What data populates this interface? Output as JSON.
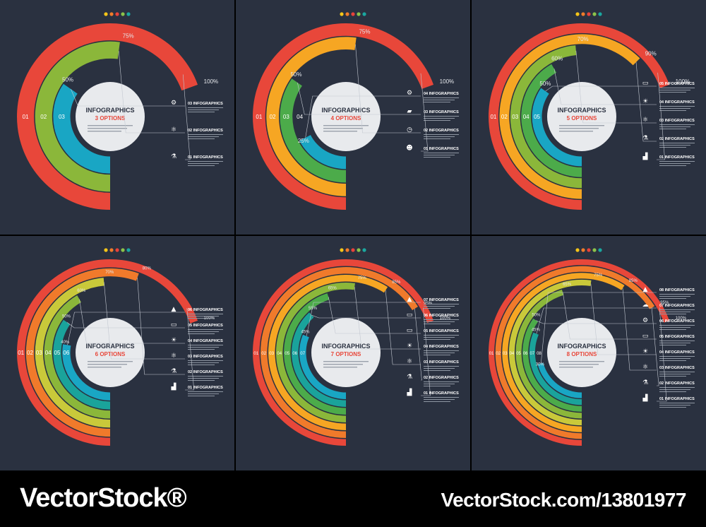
{
  "panels": [
    {
      "center_title": "INFOGRAPHICS",
      "center_subtitle": "3 OPTIONS",
      "percentages": [
        "100%",
        "75%",
        "50%"
      ],
      "ring_numbers": [
        "01",
        "02",
        "03"
      ],
      "options": [
        "03 INFOGRAPHICS",
        "02 INFOGRAPHICS",
        "01 INFOGRAPHICS"
      ],
      "icons": [
        "gear-icon",
        "atom-icon",
        "flask-icon"
      ]
    },
    {
      "center_title": "INFOGRAPHICS",
      "center_subtitle": "4 OPTIONS",
      "percentages": [
        "100%",
        "75%",
        "50%",
        "25%"
      ],
      "ring_numbers": [
        "01",
        "02",
        "03",
        "04"
      ],
      "options": [
        "04 INFOGRAPHICS",
        "03 INFOGRAPHICS",
        "02 INFOGRAPHICS",
        "01 INFOGRAPHICS"
      ],
      "icons": [
        "gear-icon",
        "briefcase-icon",
        "clock-icon",
        "people-icon"
      ]
    },
    {
      "center_title": "INFOGRAPHICS",
      "center_subtitle": "5 OPTIONS",
      "percentages": [
        "100%",
        "90%",
        "70%",
        "60%",
        "50%"
      ],
      "ring_numbers": [
        "01",
        "02",
        "03",
        "04",
        "05"
      ],
      "options": [
        "05 INFOGRAPHICS",
        "04 INFOGRAPHICS",
        "03 INFOGRAPHICS",
        "02 INFOGRAPHICS",
        "01 INFOGRAPHICS"
      ],
      "icons": [
        "monitor-icon",
        "bulb-icon",
        "atom-icon",
        "flask-icon",
        "factory-icon"
      ]
    },
    {
      "center_title": "INFOGRAPHICS",
      "center_subtitle": "6 OPTIONS",
      "percentages": [
        "100%",
        "80%",
        "70%",
        "60%",
        "50%",
        "40%"
      ],
      "ring_numbers": [
        "01",
        "02",
        "03",
        "04",
        "05",
        "06"
      ],
      "options": [
        "06 INFOGRAPHICS",
        "05 INFOGRAPHICS",
        "04 INFOGRAPHICS",
        "03 INFOGRAPHICS",
        "02 INFOGRAPHICS",
        "01 INFOGRAPHICS"
      ],
      "icons": [
        "rocket-icon",
        "monitor-icon",
        "bulb-icon",
        "atom-icon",
        "flask-icon",
        "factory-icon"
      ]
    },
    {
      "center_title": "INFOGRAPHICS",
      "center_subtitle": "7 OPTIONS",
      "percentages": [
        "100%",
        "95%",
        "85%",
        "75%",
        "65%",
        "55%",
        "45%"
      ],
      "ring_numbers": [
        "01",
        "02",
        "03",
        "04",
        "05",
        "06",
        "07"
      ],
      "options": [
        "07 INFOGRAPHICS",
        "06 INFOGRAPHICS",
        "05 INFOGRAPHICS",
        "04 INFOGRAPHICS",
        "03 INFOGRAPHICS",
        "02 INFOGRAPHICS",
        "01 INFOGRAPHICS"
      ],
      "icons": [
        "rocket-icon",
        "monitor-icon",
        "monitor-icon",
        "bulb-icon",
        "atom-icon",
        "flask-icon",
        "factory-icon"
      ]
    },
    {
      "center_title": "INFOGRAPHICS",
      "center_subtitle": "8 OPTIONS",
      "percentages": [
        "100%",
        "95%",
        "85%",
        "75%",
        "65%",
        "50%",
        "45%",
        "30%"
      ],
      "ring_numbers": [
        "01",
        "02",
        "03",
        "04",
        "05",
        "06",
        "07",
        "08"
      ],
      "options": [
        "08 INFOGRAPHICS",
        "07 INFOGRAPHICS",
        "06 INFOGRAPHICS",
        "05 INFOGRAPHICS",
        "04 INFOGRAPHICS",
        "03 INFOGRAPHICS",
        "02 INFOGRAPHICS",
        "01 INFOGRAPHICS"
      ],
      "icons": [
        "rocket-icon",
        "cloud-icon",
        "gear-icon",
        "monitor-icon",
        "bulb-icon",
        "atom-icon",
        "flask-icon",
        "factory-icon"
      ]
    }
  ],
  "dot_colors": [
    "#f5c518",
    "#f07b2a",
    "#e8423a",
    "#8bc34a",
    "#1aa7a0"
  ],
  "palette": [
    "#e8473a",
    "#f07a2b",
    "#f6a623",
    "#c9c93a",
    "#8bb73a",
    "#4cab4a",
    "#1aa39b",
    "#19a6c4"
  ],
  "colors": {
    "background": "#2a3140",
    "center_circle": "#e8eaed",
    "line": "#c3c8d1",
    "accent_text": "#e8473a"
  },
  "watermark": {
    "left": "VectorStock®",
    "right": "VectorStock.com/13801977"
  }
}
